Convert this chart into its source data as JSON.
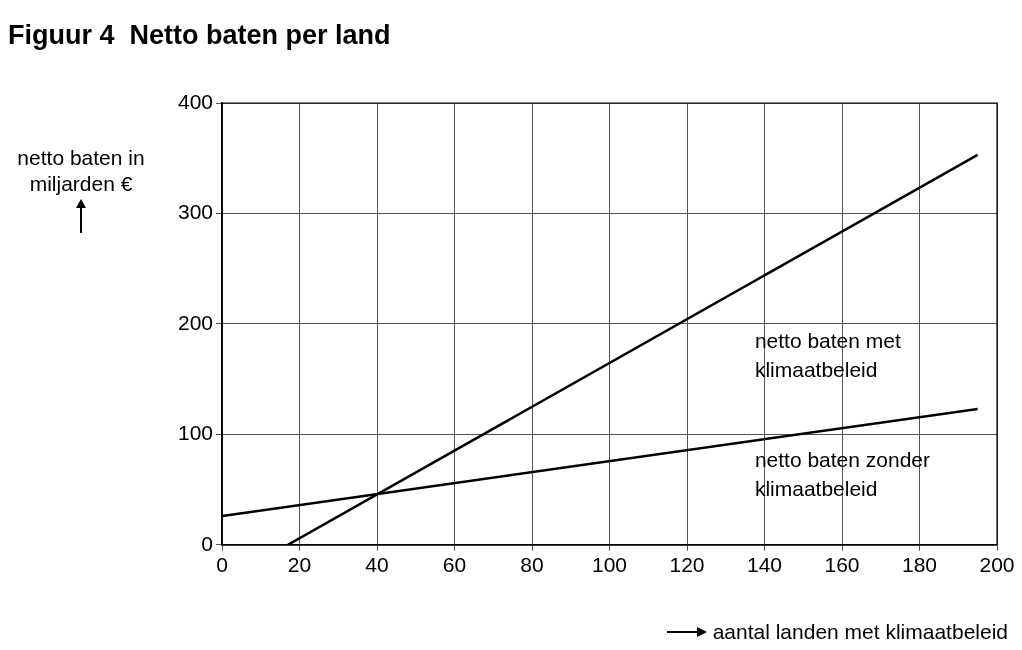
{
  "chart_data": {
    "type": "line",
    "title": "Figuur 4  Netto baten per land",
    "xlabel": "aantal landen met klimaatbeleid",
    "ylabel": "netto baten in miljarden €",
    "xlim": [
      0,
      200
    ],
    "xticks": [
      0,
      20,
      40,
      60,
      80,
      100,
      120,
      140,
      160,
      180,
      200
    ],
    "ylim": [
      0,
      400
    ],
    "yticks": [
      0,
      100,
      200,
      300,
      400
    ],
    "grid": true,
    "legend": false,
    "marker": "none",
    "line_style": "solid",
    "series": [
      {
        "name": "netto baten met klimaatbeleid",
        "color": "#000000",
        "x": [
          17,
          195
        ],
        "values": [
          0,
          353
        ]
      },
      {
        "name": "netto baten zonder klimaatbeleid",
        "color": "#000000",
        "x": [
          0,
          195
        ],
        "values": [
          26,
          123
        ]
      }
    ]
  }
}
